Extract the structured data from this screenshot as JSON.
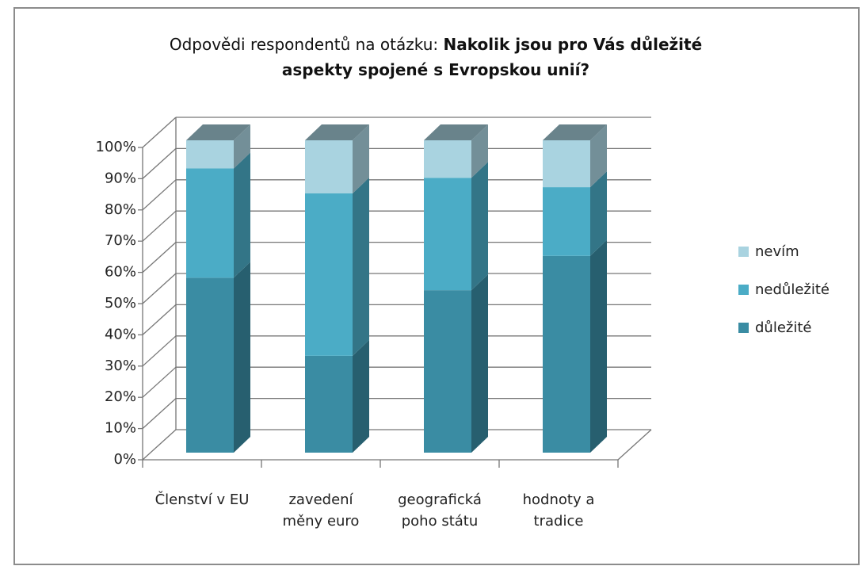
{
  "chart_data": {
    "type": "stacked_bar_3d",
    "title": [
      "Odpovědi respondentů na otázku:",
      "Nakolik jsou pro Vás důležité aspekty spojené s Evropskou unií?"
    ],
    "categories": [
      "Členství v EU",
      "zavedení měny euro",
      "geografická poho státu",
      "hodnoty a tradice"
    ],
    "series": [
      {
        "name": "důležité",
        "color": "#3a8ca3",
        "values": [
          56,
          31,
          52,
          63
        ]
      },
      {
        "name": "nedůležité",
        "color": "#4bacc6",
        "values": [
          35,
          52,
          36,
          22
        ]
      },
      {
        "name": "nevím",
        "color": "#a9d3e0",
        "values": [
          9,
          17,
          12,
          15
        ]
      }
    ],
    "ylim": [
      0,
      100
    ],
    "yticks": [
      {
        "value": 0,
        "label": "0%"
      },
      {
        "value": 10,
        "label": "10%"
      },
      {
        "value": 20,
        "label": "20%"
      },
      {
        "value": 30,
        "label": "30%"
      },
      {
        "value": 40,
        "label": "40%"
      },
      {
        "value": 50,
        "label": "50%"
      },
      {
        "value": 60,
        "label": "60%"
      },
      {
        "value": 70,
        "label": "70%"
      },
      {
        "value": 80,
        "label": "80%"
      },
      {
        "value": 90,
        "label": "90%"
      },
      {
        "value": 100,
        "label": "100%"
      }
    ],
    "grid": true,
    "legend": "right"
  }
}
